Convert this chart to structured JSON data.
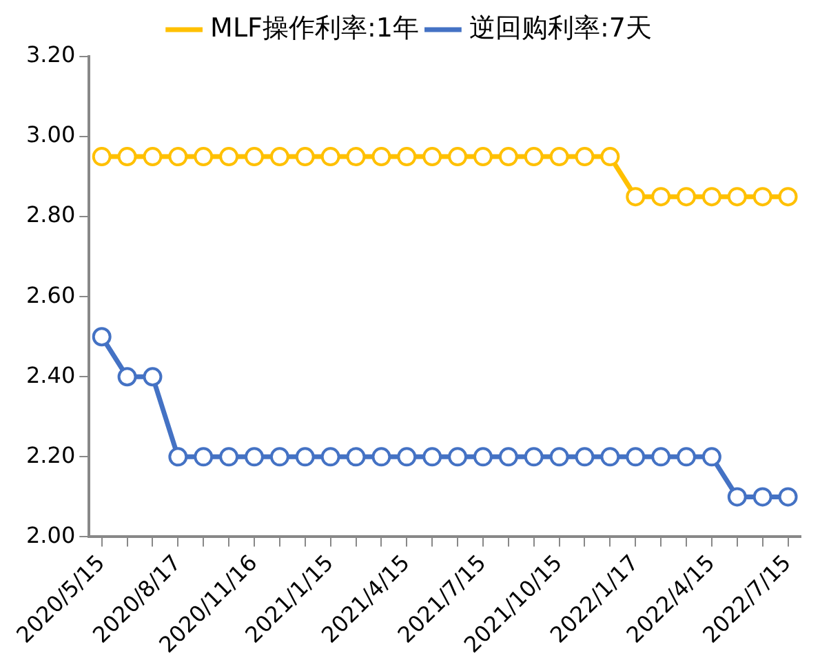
{
  "chart_data": {
    "type": "line",
    "categories": [
      "2020/5/15",
      null,
      null,
      "2020/8/17",
      null,
      null,
      "2020/11/16",
      null,
      null,
      "2021/1/15",
      null,
      null,
      "2021/4/15",
      null,
      null,
      "2021/7/15",
      null,
      null,
      "2021/10/15",
      null,
      null,
      "2022/1/17",
      null,
      null,
      "2022/4/15",
      null,
      null,
      "2022/7/15"
    ],
    "series": [
      {
        "name": "MLF操作利率:1年",
        "color": "#ffc000",
        "values": [
          2.95,
          2.95,
          2.95,
          2.95,
          2.95,
          2.95,
          2.95,
          2.95,
          2.95,
          2.95,
          2.95,
          2.95,
          2.95,
          2.95,
          2.95,
          2.95,
          2.95,
          2.95,
          2.95,
          2.95,
          2.95,
          2.85,
          2.85,
          2.85,
          2.85,
          2.85,
          2.85,
          2.85
        ]
      },
      {
        "name": "逆回购利率:7天",
        "color": "#4472c4",
        "values": [
          2.5,
          2.4,
          2.4,
          2.2,
          2.2,
          2.2,
          2.2,
          2.2,
          2.2,
          2.2,
          2.2,
          2.2,
          2.2,
          2.2,
          2.2,
          2.2,
          2.2,
          2.2,
          2.2,
          2.2,
          2.2,
          2.2,
          2.2,
          2.2,
          2.2,
          2.1,
          2.1,
          2.1
        ]
      }
    ],
    "ylim": [
      2,
      3.2
    ],
    "yticks": [
      {
        "value": 2,
        "label": "2.00"
      },
      {
        "value": 2.2,
        "label": "2.20"
      },
      {
        "value": 2.4,
        "label": "2.40"
      },
      {
        "value": 2.6,
        "label": "2.60"
      },
      {
        "value": 2.8,
        "label": "2.80"
      },
      {
        "value": 3,
        "label": "3.00"
      },
      {
        "value": 3.2,
        "label": "3.20"
      }
    ],
    "grid": false,
    "legend": "top",
    "marker": "circle",
    "line_style": "solid"
  }
}
